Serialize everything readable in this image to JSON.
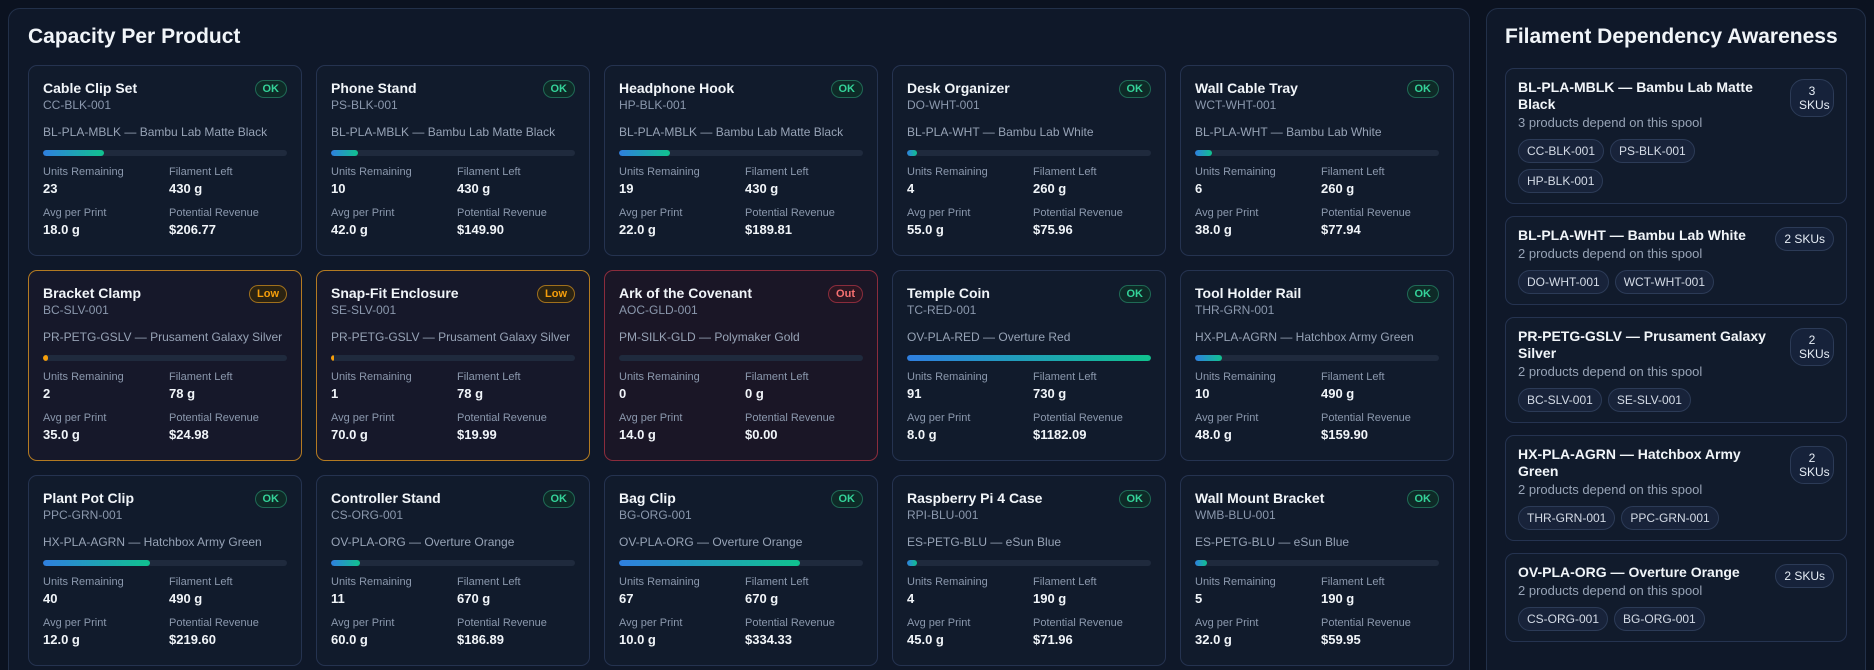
{
  "capacity": {
    "title": "Capacity Per Product",
    "labels": {
      "units_remaining": "Units Remaining",
      "filament_left": "Filament Left",
      "avg_per_print": "Avg per Print",
      "potential_revenue": "Potential Revenue"
    },
    "products": [
      {
        "name": "Cable Clip Set",
        "sku": "CC-BLK-001",
        "spool": "BL-PLA-MBLK — Bambu Lab Matte Black",
        "status": "OK",
        "status_type": "ok",
        "fill": 0.25,
        "units": "23",
        "filament": "430 g",
        "avg": "18.0 g",
        "revenue": "$206.77"
      },
      {
        "name": "Phone Stand",
        "sku": "PS-BLK-001",
        "spool": "BL-PLA-MBLK — Bambu Lab Matte Black",
        "status": "OK",
        "status_type": "ok",
        "fill": 0.11,
        "units": "10",
        "filament": "430 g",
        "avg": "42.0 g",
        "revenue": "$149.90"
      },
      {
        "name": "Headphone Hook",
        "sku": "HP-BLK-001",
        "spool": "BL-PLA-MBLK — Bambu Lab Matte Black",
        "status": "OK",
        "status_type": "ok",
        "fill": 0.21,
        "units": "19",
        "filament": "430 g",
        "avg": "22.0 g",
        "revenue": "$189.81"
      },
      {
        "name": "Desk Organizer",
        "sku": "DO-WHT-001",
        "spool": "BL-PLA-WHT — Bambu Lab White",
        "status": "OK",
        "status_type": "ok",
        "fill": 0.04,
        "units": "4",
        "filament": "260 g",
        "avg": "55.0 g",
        "revenue": "$75.96"
      },
      {
        "name": "Wall Cable Tray",
        "sku": "WCT-WHT-001",
        "spool": "BL-PLA-WHT — Bambu Lab White",
        "status": "OK",
        "status_type": "ok",
        "fill": 0.07,
        "units": "6",
        "filament": "260 g",
        "avg": "38.0 g",
        "revenue": "$77.94"
      },
      {
        "name": "Bracket Clamp",
        "sku": "BC-SLV-001",
        "spool": "PR-PETG-GSLV — Prusament Galaxy Silver",
        "status": "Low",
        "status_type": "low",
        "fill": 0.02,
        "units": "2",
        "filament": "78 g",
        "avg": "35.0 g",
        "revenue": "$24.98"
      },
      {
        "name": "Snap-Fit Enclosure",
        "sku": "SE-SLV-001",
        "spool": "PR-PETG-GSLV — Prusament Galaxy Silver",
        "status": "Low",
        "status_type": "low",
        "fill": 0.01,
        "units": "1",
        "filament": "78 g",
        "avg": "70.0 g",
        "revenue": "$19.99"
      },
      {
        "name": "Ark of the Covenant",
        "sku": "AOC-GLD-001",
        "spool": "PM-SILK-GLD — Polymaker Gold",
        "status": "Out",
        "status_type": "out",
        "fill": 0,
        "units": "0",
        "filament": "0 g",
        "avg": "14.0 g",
        "revenue": "$0.00"
      },
      {
        "name": "Temple Coin",
        "sku": "TC-RED-001",
        "spool": "OV-PLA-RED — Overture Red",
        "status": "OK",
        "status_type": "ok",
        "fill": 1.0,
        "units": "91",
        "filament": "730 g",
        "avg": "8.0 g",
        "revenue": "$1182.09"
      },
      {
        "name": "Tool Holder Rail",
        "sku": "THR-GRN-001",
        "spool": "HX-PLA-AGRN — Hatchbox Army Green",
        "status": "OK",
        "status_type": "ok",
        "fill": 0.11,
        "units": "10",
        "filament": "490 g",
        "avg": "48.0 g",
        "revenue": "$159.90"
      },
      {
        "name": "Plant Pot Clip",
        "sku": "PPC-GRN-001",
        "spool": "HX-PLA-AGRN — Hatchbox Army Green",
        "status": "OK",
        "status_type": "ok",
        "fill": 0.44,
        "units": "40",
        "filament": "490 g",
        "avg": "12.0 g",
        "revenue": "$219.60"
      },
      {
        "name": "Controller Stand",
        "sku": "CS-ORG-001",
        "spool": "OV-PLA-ORG — Overture Orange",
        "status": "OK",
        "status_type": "ok",
        "fill": 0.12,
        "units": "11",
        "filament": "670 g",
        "avg": "60.0 g",
        "revenue": "$186.89"
      },
      {
        "name": "Bag Clip",
        "sku": "BG-ORG-001",
        "spool": "OV-PLA-ORG — Overture Orange",
        "status": "OK",
        "status_type": "ok",
        "fill": 0.74,
        "units": "67",
        "filament": "670 g",
        "avg": "10.0 g",
        "revenue": "$334.33"
      },
      {
        "name": "Raspberry Pi 4 Case",
        "sku": "RPI-BLU-001",
        "spool": "ES-PETG-BLU — eSun Blue",
        "status": "OK",
        "status_type": "ok",
        "fill": 0.04,
        "units": "4",
        "filament": "190 g",
        "avg": "45.0 g",
        "revenue": "$71.96"
      },
      {
        "name": "Wall Mount Bracket",
        "sku": "WMB-BLU-001",
        "spool": "ES-PETG-BLU — eSun Blue",
        "status": "OK",
        "status_type": "ok",
        "fill": 0.05,
        "units": "5",
        "filament": "190 g",
        "avg": "32.0 g",
        "revenue": "$59.95"
      }
    ]
  },
  "dependency": {
    "title": "Filament Dependency Awareness",
    "spools": [
      {
        "title": "BL-PLA-MBLK — Bambu Lab Matte Black",
        "sub": "3 products depend on this spool",
        "count": "3 SKUs",
        "skus": [
          "CC-BLK-001",
          "PS-BLK-001",
          "HP-BLK-001"
        ]
      },
      {
        "title": "BL-PLA-WHT — Bambu Lab White",
        "sub": "2 products depend on this spool",
        "count": "2 SKUs",
        "skus": [
          "DO-WHT-001",
          "WCT-WHT-001"
        ]
      },
      {
        "title": "PR-PETG-GSLV — Prusament Galaxy Silver",
        "sub": "2 products depend on this spool",
        "count": "2 SKUs",
        "skus": [
          "BC-SLV-001",
          "SE-SLV-001"
        ]
      },
      {
        "title": "HX-PLA-AGRN — Hatchbox Army Green",
        "sub": "2 products depend on this spool",
        "count": "2 SKUs",
        "skus": [
          "THR-GRN-001",
          "PPC-GRN-001"
        ]
      },
      {
        "title": "OV-PLA-ORG — Overture Orange",
        "sub": "2 products depend on this spool",
        "count": "2 SKUs",
        "skus": [
          "CS-ORG-001",
          "BG-ORG-001"
        ]
      }
    ]
  }
}
